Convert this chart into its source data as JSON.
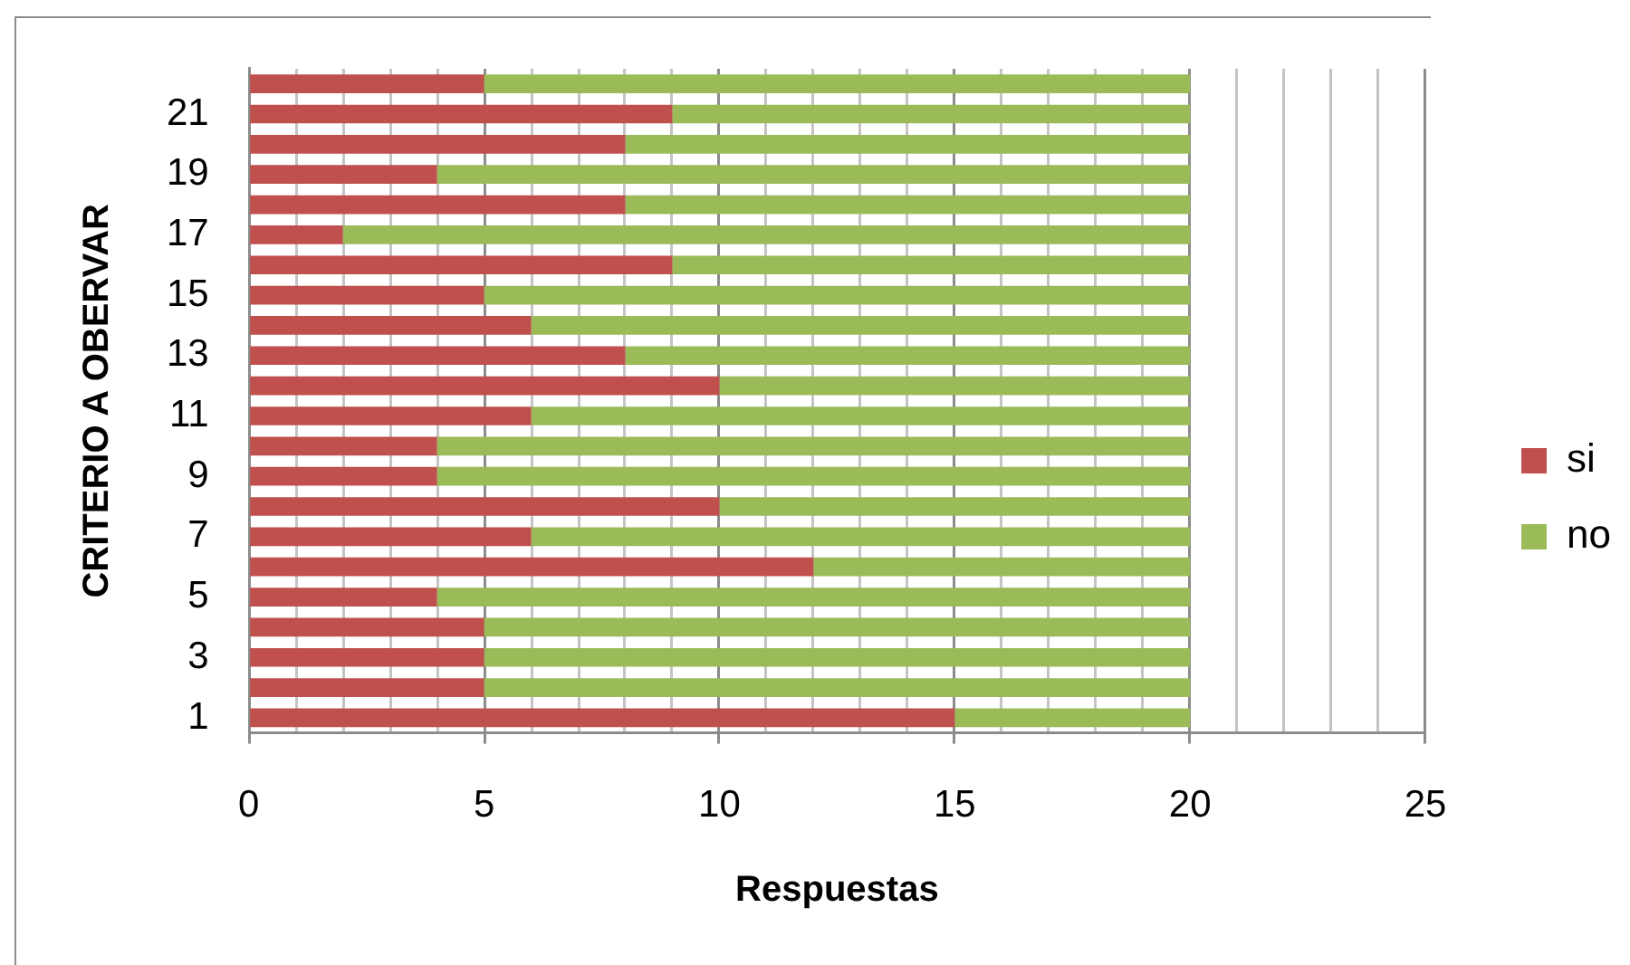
{
  "chart_data": {
    "type": "bar",
    "orientation": "horizontal",
    "stacked": true,
    "xlabel": "Respuestas",
    "ylabel": "CRITERIO A OBERVAR",
    "categories": [
      null,
      "21",
      null,
      "19",
      null,
      "17",
      null,
      "15",
      null,
      "13",
      null,
      "11",
      null,
      "9",
      null,
      "7",
      null,
      "5",
      null,
      "3",
      null,
      "1"
    ],
    "series": [
      {
        "name": "si",
        "color": "#c0504d",
        "values": [
          5,
          9,
          8,
          4,
          8,
          2,
          9,
          5,
          6,
          8,
          10,
          6,
          4,
          4,
          10,
          6,
          12,
          4,
          5,
          5,
          5,
          15
        ]
      },
      {
        "name": "no",
        "color": "#9bbb59",
        "values": [
          15,
          11,
          12,
          16,
          12,
          18,
          11,
          15,
          14,
          12,
          10,
          14,
          16,
          16,
          10,
          14,
          8,
          16,
          15,
          15,
          15,
          5
        ]
      }
    ],
    "xlim": [
      0,
      25
    ],
    "xticks": [
      0,
      {
        "value": 1,
        "label": null
      },
      {
        "value": 2,
        "label": null
      },
      {
        "value": 3,
        "label": null
      },
      {
        "value": 4,
        "label": null
      },
      5,
      {
        "value": 6,
        "label": null
      },
      {
        "value": 7,
        "label": null
      },
      {
        "value": 8,
        "label": null
      },
      {
        "value": 9,
        "label": null
      },
      10,
      {
        "value": 11,
        "label": null
      },
      {
        "value": 12,
        "label": null
      },
      {
        "value": 13,
        "label": null
      },
      {
        "value": 14,
        "label": null
      },
      15,
      {
        "value": 16,
        "label": null
      },
      {
        "value": 17,
        "label": null
      },
      {
        "value": 18,
        "label": null
      },
      {
        "value": 19,
        "label": null
      },
      20,
      {
        "value": 21,
        "label": null
      },
      {
        "value": 22,
        "label": null
      },
      {
        "value": 23,
        "label": null
      },
      {
        "value": 24,
        "label": null
      },
      25
    ],
    "grid": "x",
    "legend": "right"
  }
}
